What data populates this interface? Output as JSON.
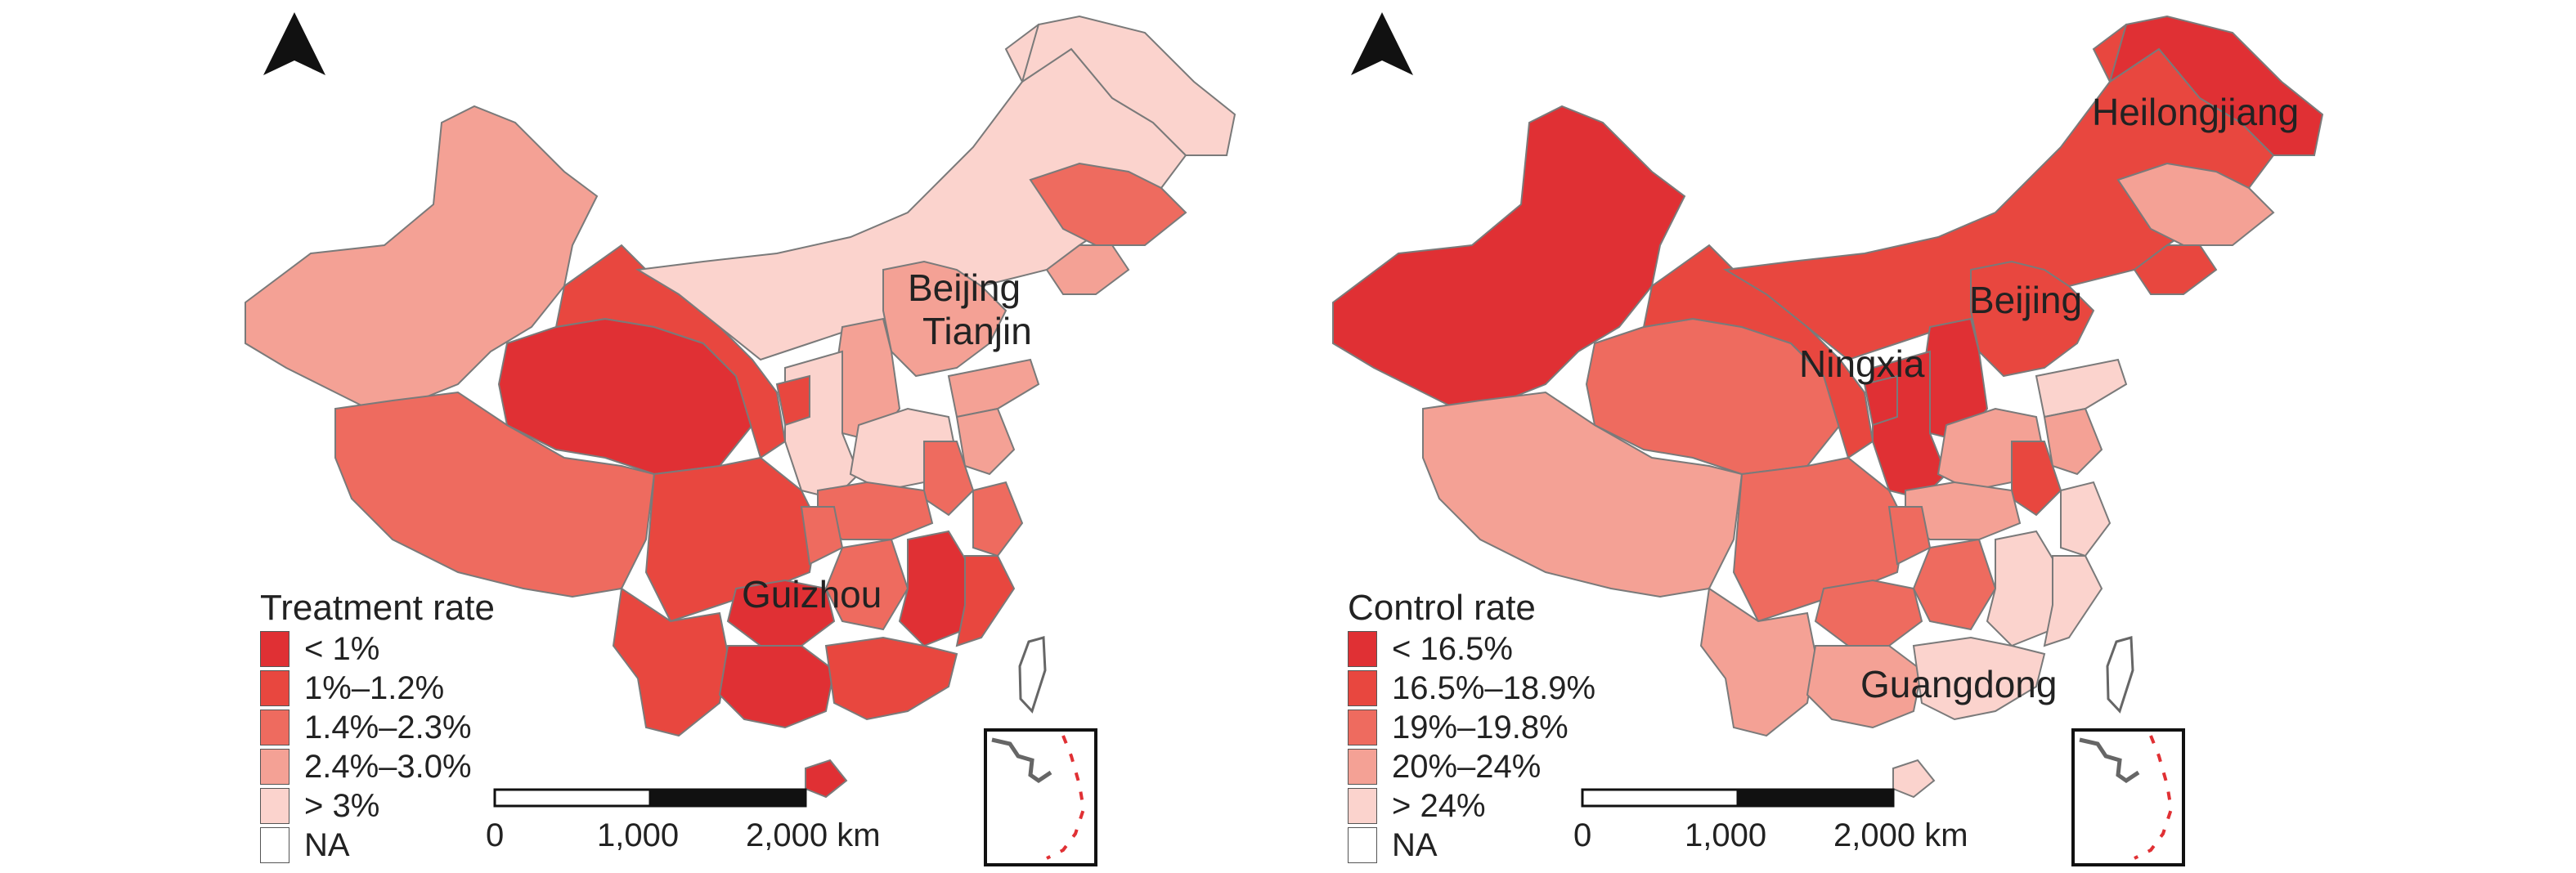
{
  "colors": {
    "c1": "#e03034",
    "c2": "#e8473f",
    "c3": "#ee6b5f",
    "c4": "#f4a195",
    "c5": "#fbd3cd",
    "na": "#ffffff",
    "stroke": "#7a7a7a"
  },
  "panels": [
    {
      "legend_title": "Treatment rate",
      "legend_items": [
        "< 1%",
        "1%–1.2%",
        "1.4%–2.3%",
        "2.4%–3.0%",
        "> 3%",
        "NA"
      ],
      "highlighted_labels": [
        "Beijing",
        "Tianjin",
        "Guizhou"
      ],
      "scale": {
        "labels": [
          "0",
          "1,000",
          "2,000 km"
        ]
      },
      "north_arrow_icon": "north-arrow-icon"
    },
    {
      "legend_title": "Control rate",
      "legend_items": [
        "< 16.5%",
        "16.5%–18.9%",
        "19%–19.8%",
        "20%–24%",
        "> 24%",
        "NA"
      ],
      "highlighted_labels": [
        "Heilongjiang",
        "Beijing",
        "Ningxia",
        "Guangdong"
      ],
      "scale": {
        "labels": [
          "0",
          "1,000",
          "2,000 km"
        ]
      },
      "north_arrow_icon": "north-arrow-icon"
    }
  ]
}
